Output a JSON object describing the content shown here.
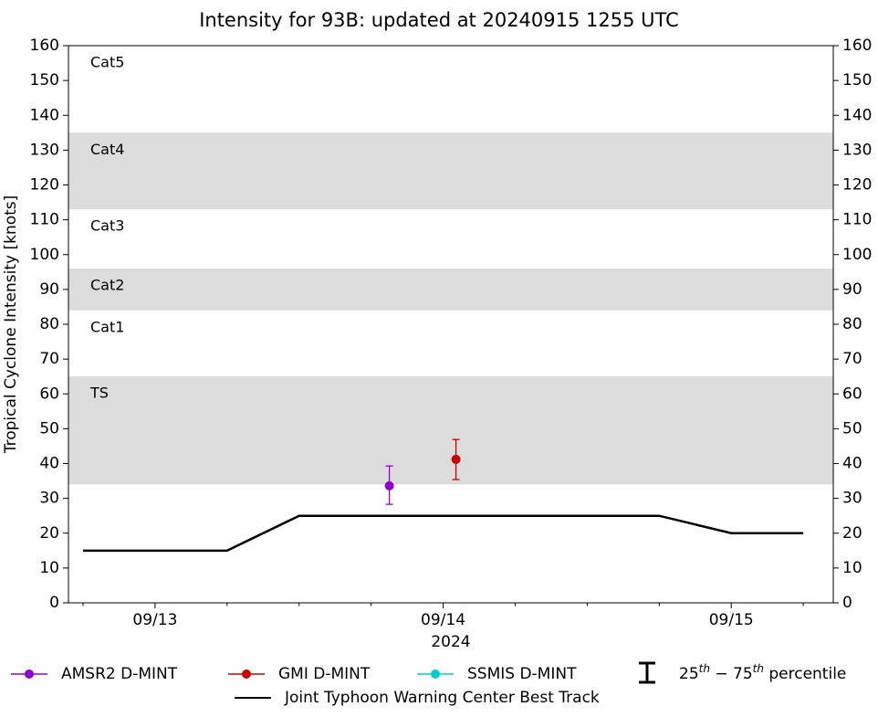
{
  "chart_data": {
    "type": "line",
    "title": "Intensity for 93B: updated at 20240915 1255 UTC",
    "ylabel": "Tropical Cyclone Intensity [knots]",
    "xlabel": "2024",
    "xlim": [
      "2024-09-12T16:47",
      "2024-09-15T08:30"
    ],
    "xticks": [
      {
        "value": "2024-09-13T00:00",
        "label": "09/13"
      },
      {
        "value": "2024-09-14T00:00",
        "label": "09/14"
      },
      {
        "value": "2024-09-15T00:00",
        "label": "09/15"
      }
    ],
    "xminorticks": [
      "2024-09-12T18:00",
      "2024-09-13T06:00",
      "2024-09-13T12:00",
      "2024-09-13T18:00",
      "2024-09-14T06:00",
      "2024-09-14T12:00",
      "2024-09-14T18:00",
      "2024-09-15T06:00"
    ],
    "ylim": [
      0,
      160
    ],
    "yticks": [
      0,
      10,
      20,
      30,
      40,
      50,
      60,
      70,
      80,
      90,
      100,
      110,
      120,
      130,
      140,
      150,
      160
    ],
    "y2lim": [
      0,
      160
    ],
    "y2ticks": [
      0,
      10,
      20,
      30,
      40,
      50,
      60,
      70,
      80,
      90,
      100,
      110,
      120,
      130,
      140,
      150,
      160
    ],
    "bands": [
      {
        "label": "TS",
        "min": 34,
        "max": 65,
        "shaded": true
      },
      {
        "label": "Cat1",
        "min": 65,
        "max": 84,
        "shaded": false
      },
      {
        "label": "Cat2",
        "min": 84,
        "max": 96,
        "shaded": true
      },
      {
        "label": "Cat3",
        "min": 96,
        "max": 113,
        "shaded": false
      },
      {
        "label": "Cat4",
        "min": 113,
        "max": 135,
        "shaded": true
      },
      {
        "label": "Cat5",
        "min": 135,
        "max": 160,
        "shaded": false
      }
    ],
    "band_color": "#dcdcdc",
    "series": [
      {
        "name": "AMSR2 D-MINT",
        "color": "#9400d3",
        "style": "point",
        "x": [
          "2024-09-13T19:31"
        ],
        "values": [
          33.6
        ],
        "lower": [
          28.3
        ],
        "upper": [
          39.3
        ]
      },
      {
        "name": "GMI D-MINT",
        "color": "#cc0000",
        "style": "point",
        "x": [
          "2024-09-14T01:04"
        ],
        "values": [
          41.2
        ],
        "lower": [
          35.4
        ],
        "upper": [
          46.9
        ]
      },
      {
        "name": "SSMIS D-MINT",
        "color": "#00ced1",
        "style": "point",
        "x": [],
        "values": [],
        "lower": [],
        "upper": []
      },
      {
        "name": "Joint Typhoon Warning Center Best Track",
        "color": "#000000",
        "style": "line",
        "x": [
          "2024-09-12T18:00",
          "2024-09-13T00:00",
          "2024-09-13T06:00",
          "2024-09-13T12:00",
          "2024-09-13T18:00",
          "2024-09-14T00:00",
          "2024-09-14T06:00",
          "2024-09-14T12:00",
          "2024-09-14T18:00",
          "2024-09-15T00:00",
          "2024-09-15T06:00"
        ],
        "values": [
          15,
          15,
          15,
          25,
          25,
          25,
          25,
          25,
          25,
          20,
          20
        ]
      }
    ],
    "percentile_legend": [
      "25",
      "th",
      " − 75",
      "th",
      " percentile"
    ]
  }
}
